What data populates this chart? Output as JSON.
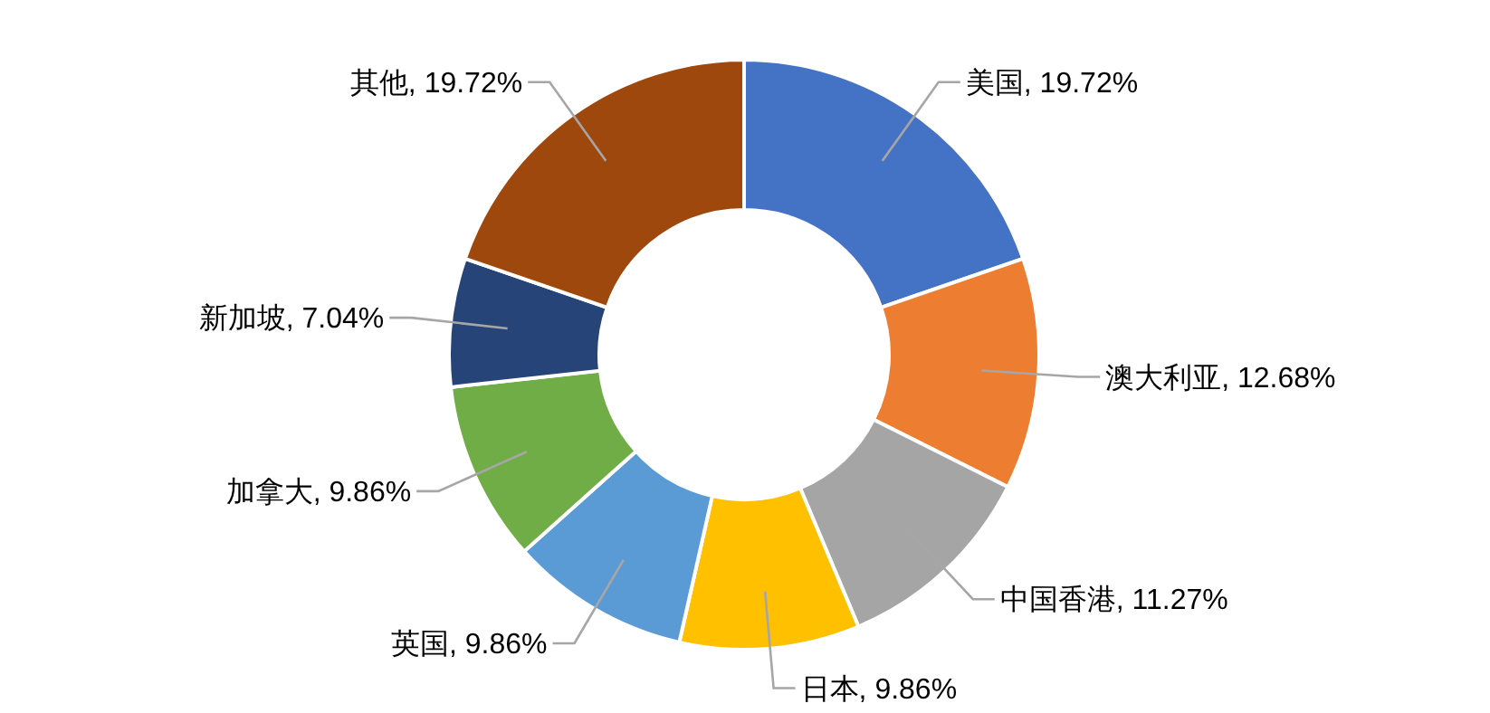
{
  "chart_data": {
    "type": "donut",
    "categories": [
      "美国",
      "澳大利亚",
      "中国香港",
      "日本",
      "英国",
      "加拿大",
      "新加坡",
      "其他"
    ],
    "values": [
      19.72,
      12.68,
      11.27,
      9.86,
      9.86,
      9.86,
      7.04,
      19.72
    ],
    "value_labels": [
      "19.72%",
      "12.68%",
      "11.27%",
      "9.86%",
      "9.86%",
      "9.86%",
      "7.04%",
      "19.72%"
    ],
    "colors": [
      "#4472c4",
      "#ed7d31",
      "#a5a5a5",
      "#ffc000",
      "#5b9bd5",
      "#70ad47",
      "#264478",
      "#9e480e"
    ],
    "legend": false
  }
}
